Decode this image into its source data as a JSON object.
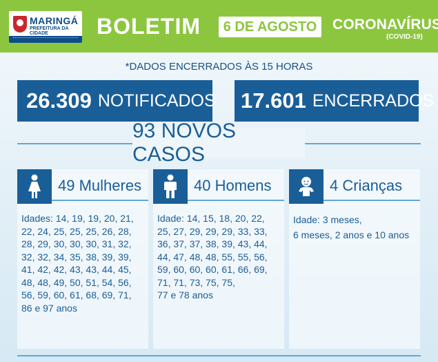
{
  "header": {
    "logo": {
      "name": "MARINGÁ",
      "subtitle": "PREFEITURA DA CIDADE"
    },
    "title": "BOLETIM",
    "date": "6 DE AGOSTO",
    "topic": "CORONAVÍRUS",
    "topic_sub": "(COVID-19)",
    "background_color": "#8cc63f"
  },
  "info": "*DADOS ENCERRADOS ÀS 15 HORAS",
  "stats": {
    "notified": {
      "value": "26.309",
      "label": "NOTIFICADOS"
    },
    "closed": {
      "value": "17.601",
      "label": "ENCERRADOS"
    }
  },
  "new_cases": "93 NOVOS CASOS",
  "groups": {
    "women": {
      "title": "49 Mulheres",
      "icon": "woman-icon",
      "lines": [
        "Idades: 14, 19, 19, 20, 21,",
        "22, 24, 25, 25, 25, 26, 28,",
        "28, 29, 30, 30, 30, 31, 32,",
        "32, 32, 34, 35, 38, 39, 39,",
        "41, 42, 42, 43, 43, 44, 45,",
        "48, 48, 49, 50, 51, 54, 56,",
        "56, 59, 60, 61, 68, 69, 71,",
        "86 e 97 anos"
      ]
    },
    "men": {
      "title": "40 Homens",
      "icon": "man-icon",
      "lines": [
        "Idade: 14, 15, 18, 20, 22,",
        "25, 27, 29, 29, 29, 33, 33,",
        "36, 37, 37, 38, 39, 43, 44,",
        "44, 47, 48, 48, 55, 55, 56,",
        "59, 60, 60, 60, 61, 66, 69,",
        "71, 71, 73, 75, 75,",
        "77 e 78 anos"
      ]
    },
    "children": {
      "title": "4 Crianças",
      "icon": "baby-icon",
      "lines": [
        "Idade: 3 meses,",
        "6 meses, 2 anos e 10 anos"
      ]
    }
  },
  "colors": {
    "primary": "#1a5e98",
    "accent_line": "#5fa8d8",
    "green": "#8cc63f"
  }
}
